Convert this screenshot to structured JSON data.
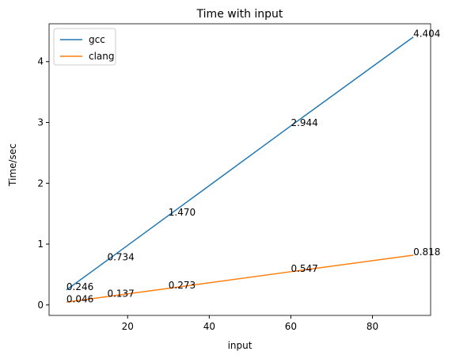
{
  "chart_data": {
    "type": "line",
    "title": "Time with input",
    "x_label": "input",
    "y_label": "Time/sec",
    "x": [
      5,
      15,
      30,
      60,
      90
    ],
    "series": [
      {
        "name": "gcc",
        "color": "#1f77b4",
        "values": [
          0.246,
          0.734,
          1.47,
          2.944,
          4.404
        ],
        "value_labels": [
          "0.246",
          "0.734",
          "1.470",
          "2.944",
          "4.404"
        ]
      },
      {
        "name": "clang",
        "color": "#ff7f0e",
        "values": [
          0.046,
          0.137,
          0.273,
          0.547,
          0.818
        ],
        "value_labels": [
          "0.046",
          "0.137",
          "0.273",
          "0.547",
          "0.818"
        ]
      }
    ],
    "xlim": [
      0.75,
      94.25
    ],
    "xticks": [
      20,
      40,
      60,
      80
    ],
    "ylim": [
      -0.172,
      4.622
    ],
    "yticks": [
      0,
      1,
      2,
      3,
      4
    ],
    "legend": "upper left"
  }
}
